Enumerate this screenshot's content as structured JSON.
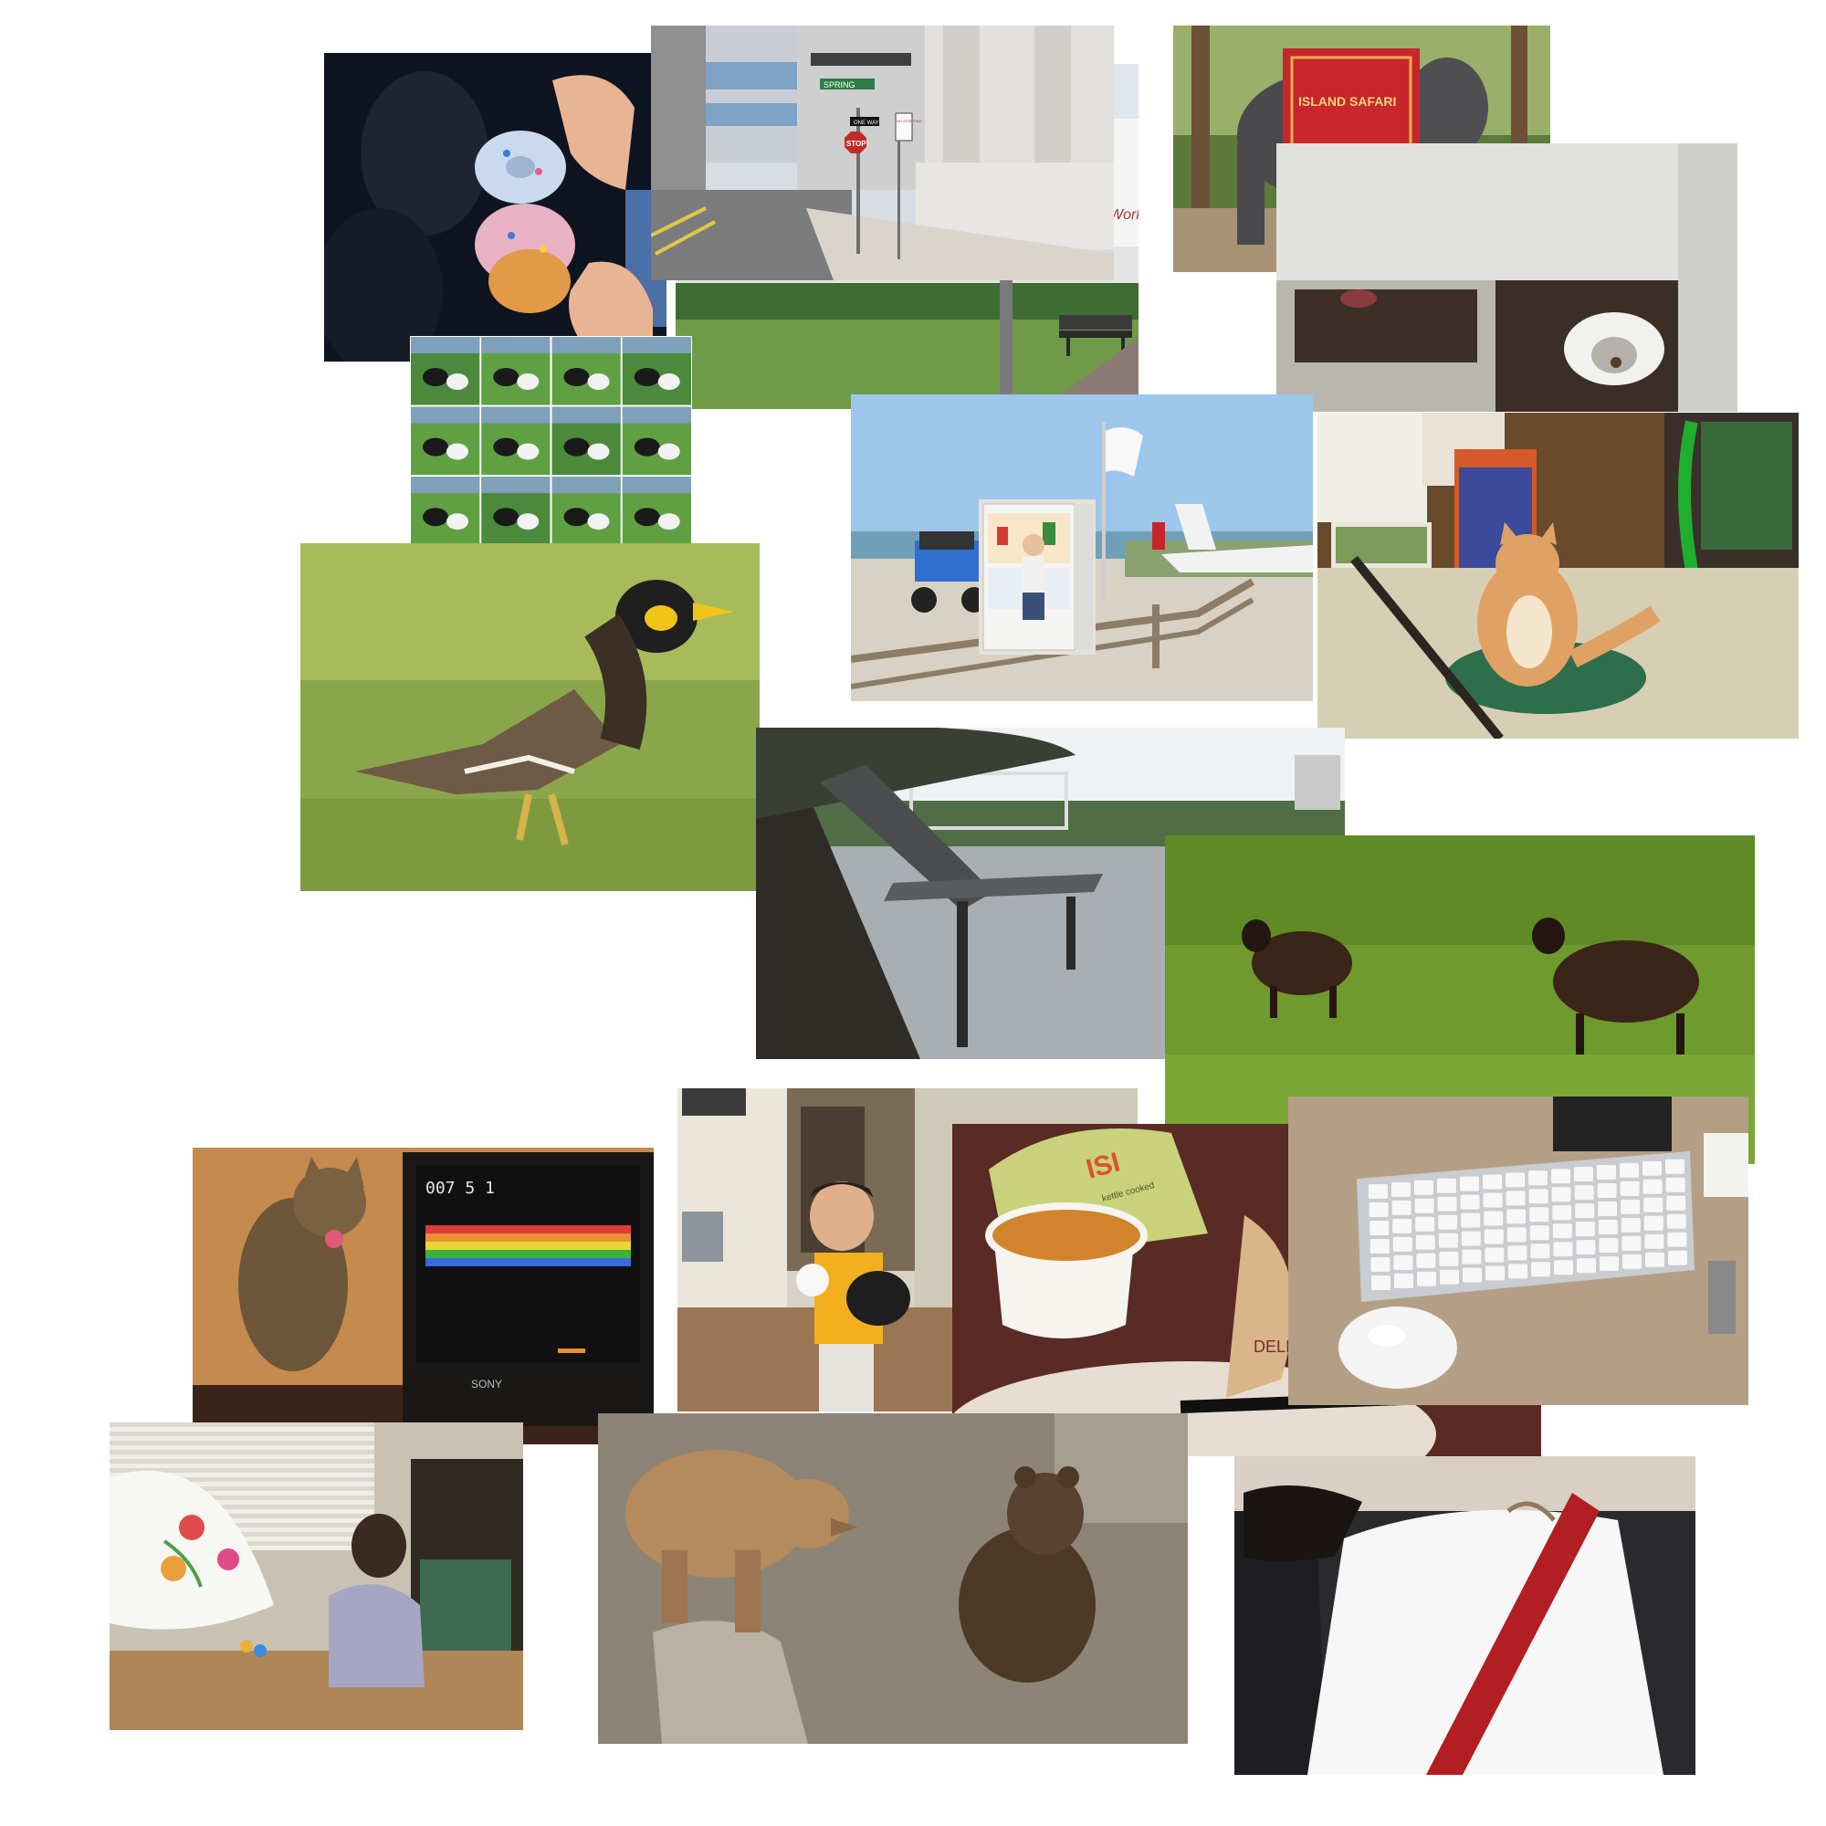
{
  "photos": [
    {
      "name": "donut-photo"
    },
    {
      "name": "street-corner-photo"
    },
    {
      "name": "parking-lot-bench-photo"
    },
    {
      "name": "elephant-photo"
    },
    {
      "name": "squat-toilet-photo"
    },
    {
      "name": "dogs-grid-photo"
    },
    {
      "name": "beach-airstrip-photo"
    },
    {
      "name": "fridge-child-photo"
    },
    {
      "name": "orange-cat-photo"
    },
    {
      "name": "myna-bird-photo"
    },
    {
      "name": "river-bench-photo"
    },
    {
      "name": "black-sheep-photo"
    },
    {
      "name": "cat-tv-photo"
    },
    {
      "name": "boy-baseball-photo"
    },
    {
      "name": "soup-chips-photo"
    },
    {
      "name": "keyboard-mouse-photo"
    },
    {
      "name": "umbrella-painting-photo"
    },
    {
      "name": "bears-photo"
    },
    {
      "name": "shirt-tie-photo"
    }
  ],
  "signs": {
    "street": "SPRING",
    "stop": "STOP",
    "one_way": "ONE WAY",
    "no_stopping": "NO STOPPING",
    "world": "World"
  },
  "elephant_blanket": "ISLAND SAFARI",
  "game_score": "007 5 1",
  "tv_brand": "SONY",
  "chips_bag": "ISI",
  "chips_bag_small": "kettle cooked",
  "plate_text": "DELICI"
}
